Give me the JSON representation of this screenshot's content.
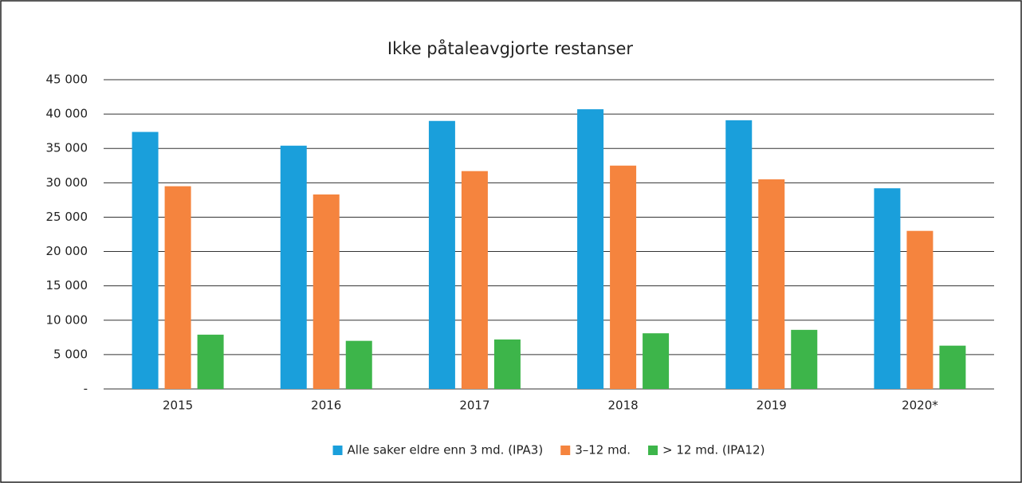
{
  "chart_data": {
    "type": "bar",
    "title": "Ikke påtaleavgjorte restanser",
    "categories": [
      "2015",
      "2016",
      "2017",
      "2018",
      "2019",
      "2020*"
    ],
    "series": [
      {
        "name": "Alle saker eldre enn 3 md. (IPA3)",
        "color": "#1a9fdb",
        "values": [
          37400,
          35400,
          39000,
          40700,
          39100,
          29200
        ]
      },
      {
        "name": "3–12 md.",
        "color": "#f5843e",
        "values": [
          29500,
          28300,
          31700,
          32500,
          30500,
          23000
        ]
      },
      {
        "name": "> 12 md. (IPA12)",
        "color": "#3db54a",
        "values": [
          7900,
          7000,
          7200,
          8100,
          8600,
          6300
        ]
      }
    ],
    "ylim": [
      0,
      45000
    ],
    "yticks": [
      {
        "value": 0,
        "label": "-"
      },
      {
        "value": 5000,
        "label": "5 000"
      },
      {
        "value": 10000,
        "label": "10 000"
      },
      {
        "value": 15000,
        "label": "15 000"
      },
      {
        "value": 20000,
        "label": "20 000"
      },
      {
        "value": 25000,
        "label": "25 000"
      },
      {
        "value": 30000,
        "label": "30 000"
      },
      {
        "value": 35000,
        "label": "35 000"
      },
      {
        "value": 40000,
        "label": "40 000"
      },
      {
        "value": 45000,
        "label": "45 000"
      }
    ],
    "grid": true,
    "legend": "bottom"
  }
}
